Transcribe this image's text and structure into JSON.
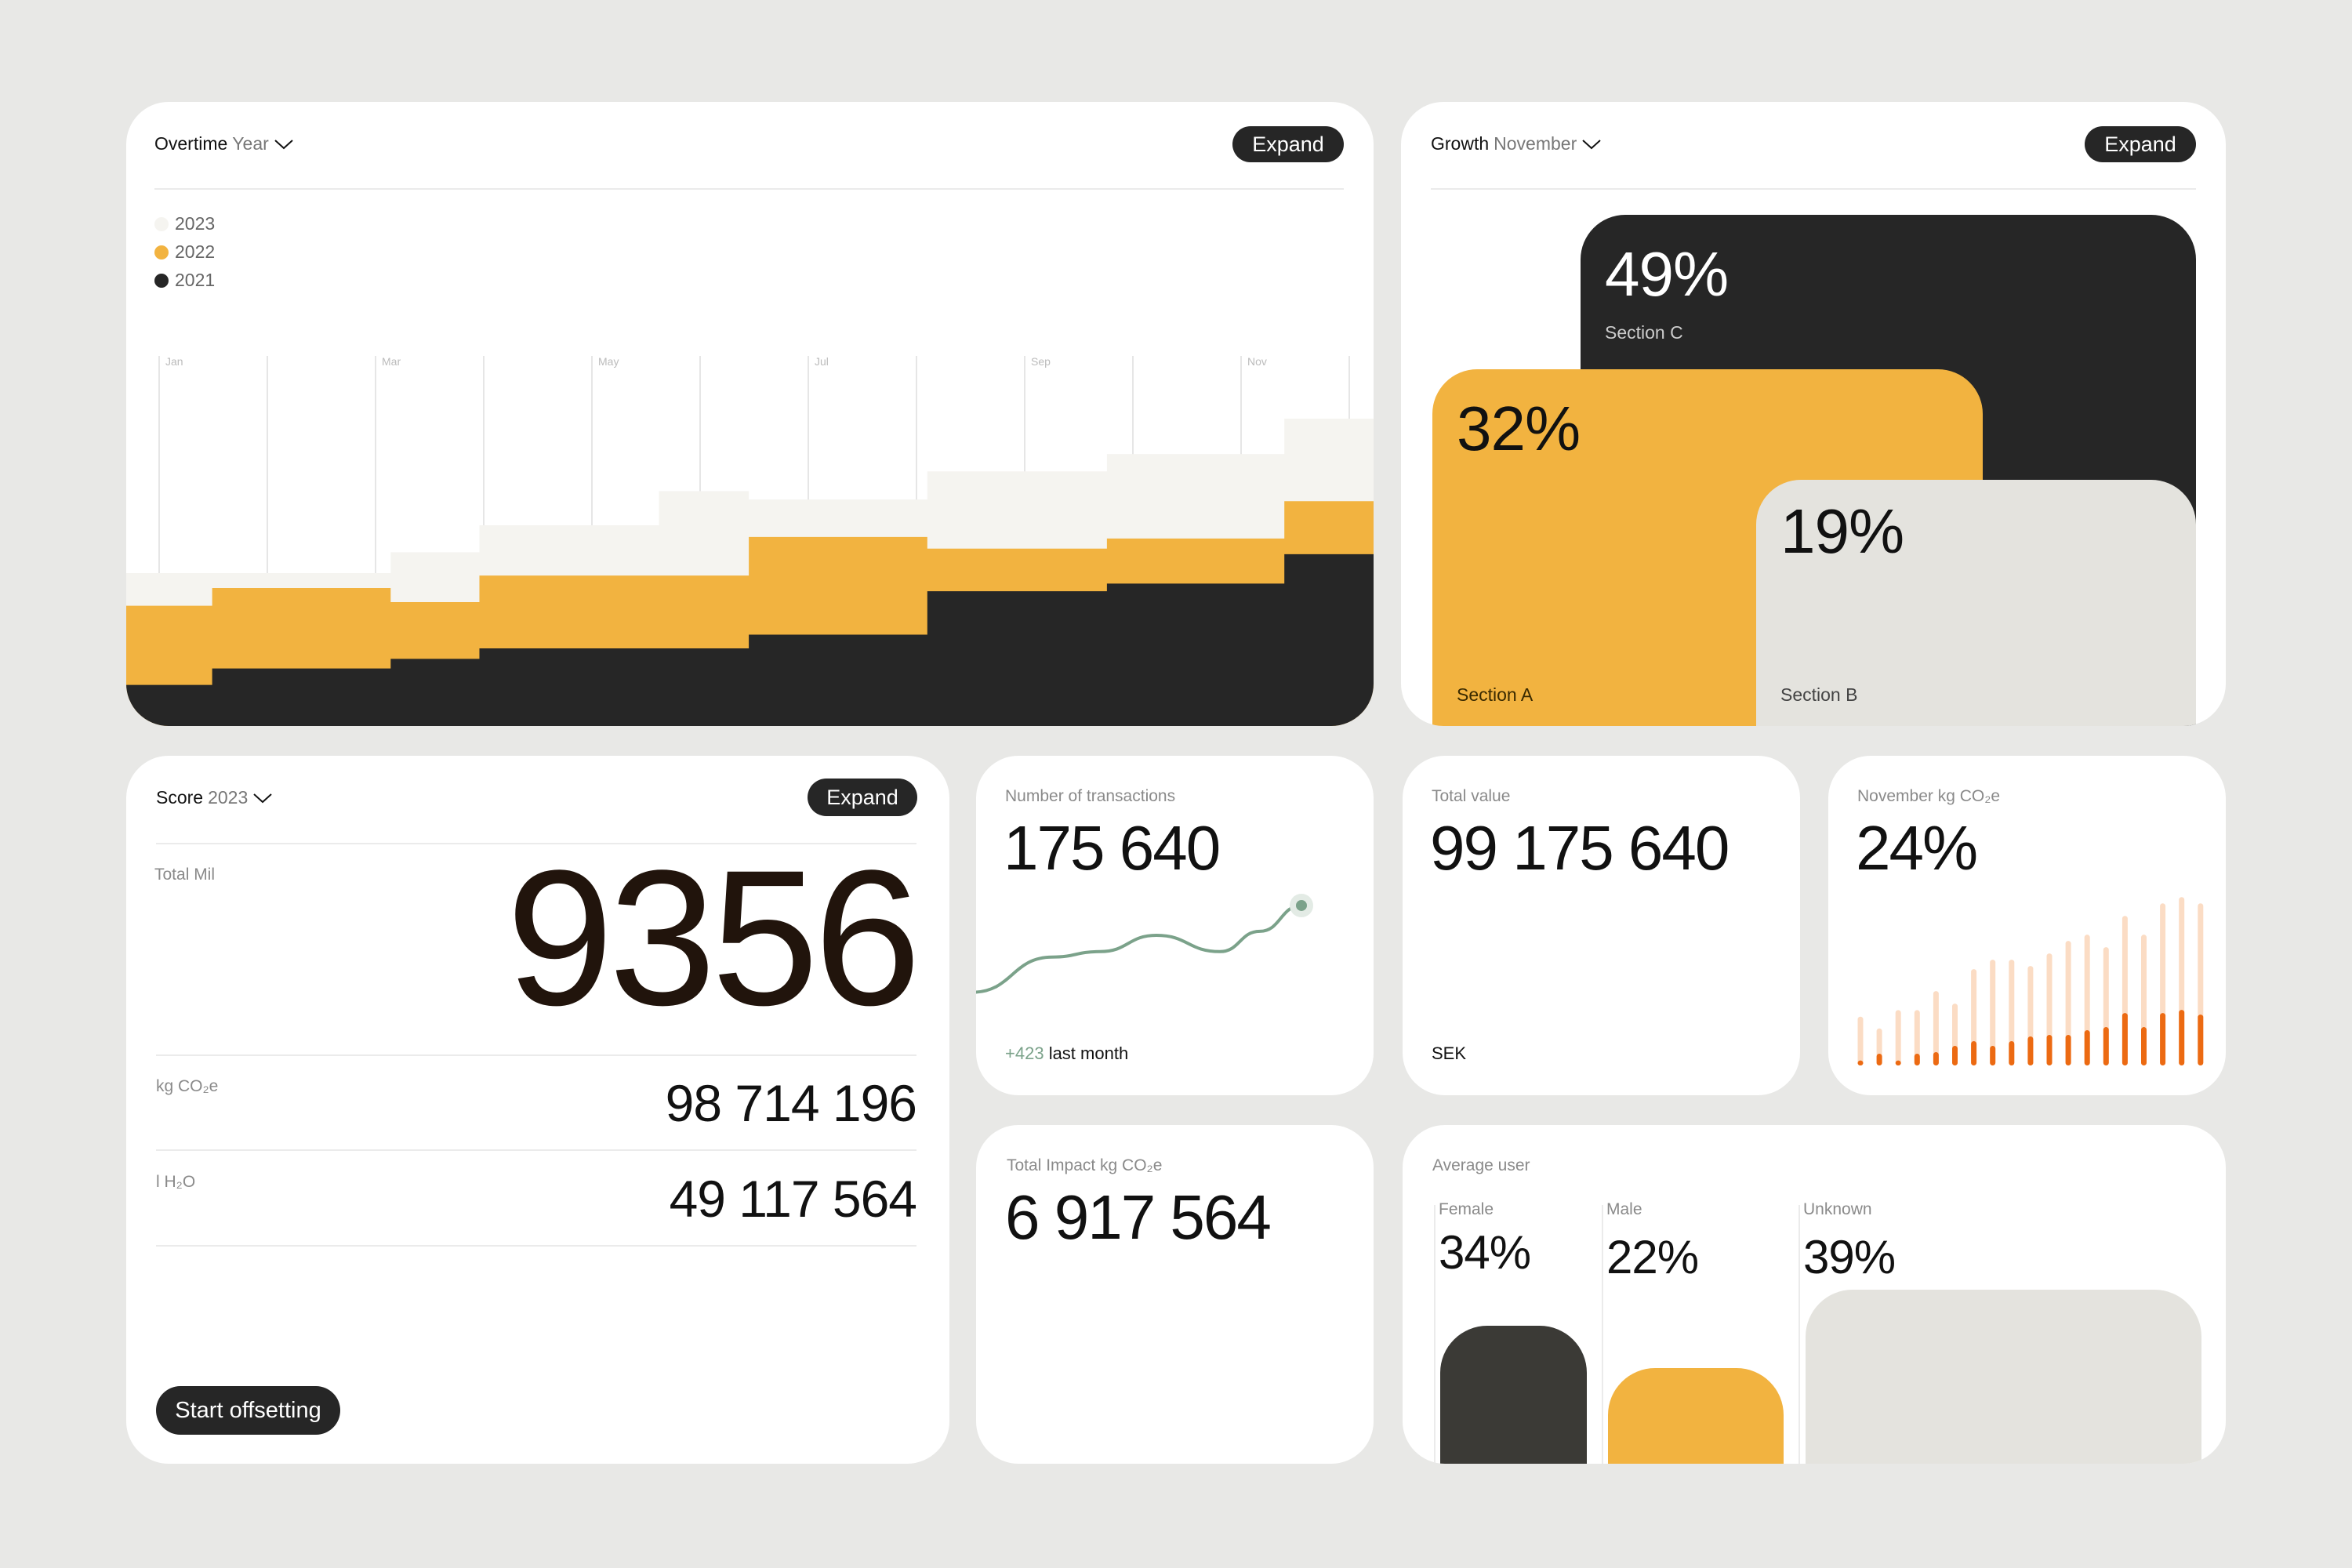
{
  "colors": {
    "background": "#e8e8e6",
    "dark": "#262626",
    "orange": "#f2b340",
    "light": "#f5f4f0",
    "stone": "#e4e3de",
    "accent_orange": "#ec6a12",
    "accent_orange_light": "#fbdcc4",
    "green": "#7ba28a",
    "female_bar": "#3b3a36"
  },
  "overtime": {
    "title": "Overtime",
    "period": "Year",
    "expand": "Expand",
    "legend": [
      {
        "label": "2023",
        "color": "#f5f4f0"
      },
      {
        "label": "2022",
        "color": "#f2b340"
      },
      {
        "label": "2021",
        "color": "#262626"
      }
    ]
  },
  "chart_data": [
    {
      "type": "area",
      "subtype": "stacked-step",
      "title": "",
      "xlabel": "",
      "ylabel": "",
      "grid": true,
      "legend": "top-left",
      "tick_labels": [
        "Jan",
        "",
        "Mar",
        "",
        "May",
        "",
        "Jul",
        "",
        "Sep",
        "",
        "Nov",
        ""
      ],
      "step_starts": [
        -0.31,
        0.49,
        2.14,
        2.96,
        4.62,
        5.45,
        7.1,
        8.76,
        10.4
      ],
      "x_end": 11.25,
      "ylim": [
        0,
        92
      ],
      "series": [
        {
          "name": "2021",
          "color": "#262626",
          "values": [
            10.2,
            14.3,
            16.7,
            19.3,
            19.3,
            22.7,
            33.5,
            35.4,
            42.7
          ]
        },
        {
          "name": "2022",
          "color": "#f2b340",
          "values": [
            19.7,
            20.0,
            14.1,
            18.1,
            18.1,
            24.3,
            10.6,
            11.2,
            13.2
          ]
        },
        {
          "name": "2023",
          "color": "#f5f4f0",
          "values": [
            8.1,
            3.7,
            12.4,
            12.5,
            21.0,
            9.3,
            19.2,
            21.0,
            20.5
          ]
        }
      ]
    },
    {
      "type": "line",
      "title": "",
      "values": [
        10,
        36,
        40,
        52,
        40,
        55,
        74
      ]
    },
    {
      "type": "bar",
      "title": "",
      "series": [
        {
          "color": "#fbdcc4",
          "values": [
            18.7,
            14.2,
            21.2,
            21.2,
            28.5,
            23.7,
            36.9,
            40.5,
            40.5,
            38.1,
            42.9,
            47.7,
            50.1,
            45.3,
            57.3,
            50.1,
            62.1,
            64.5,
            62.1
          ]
        },
        {
          "color": "#ec6a12",
          "values": [
            1.9,
            4.5,
            1.9,
            4.5,
            5.1,
            7.5,
            9.3,
            7.5,
            9.3,
            11.1,
            11.7,
            11.7,
            13.5,
            14.7,
            20.1,
            14.7,
            20.1,
            21.3,
            19.5
          ]
        }
      ]
    }
  ],
  "growth": {
    "title": "Growth",
    "period": "November",
    "expand": "Expand",
    "sections": [
      {
        "pct": "49%",
        "label": "Section C"
      },
      {
        "pct": "32%",
        "label": "Section A"
      },
      {
        "pct": "19%",
        "label": "Section B"
      }
    ]
  },
  "score": {
    "title": "Score",
    "period": "2023",
    "expand": "Expand",
    "total_label": "Total Mil",
    "total_value": "9356",
    "rows": [
      {
        "label": "kg CO₂e",
        "value": "98 714 196"
      },
      {
        "label": "l H₂O",
        "value": "49 117 564"
      }
    ],
    "cta": "Start offsetting"
  },
  "transactions": {
    "label": "Number of transactions",
    "value": "175 640",
    "delta": "+423",
    "delta_suffix": "last month"
  },
  "total_value": {
    "label": "Total value",
    "value": "99 175 640",
    "currency": "SEK"
  },
  "november": {
    "label": "November kg CO₂e",
    "value": "24%"
  },
  "impact": {
    "label": "Total Impact kg CO₂e",
    "value": "6 917 564"
  },
  "average_user": {
    "label": "Average user",
    "groups": [
      {
        "label": "Female",
        "pct": "34%",
        "value": 34
      },
      {
        "label": "Male",
        "pct": "22%",
        "value": 22
      },
      {
        "label": "Unknown",
        "pct": "39%",
        "value": 39
      }
    ]
  }
}
